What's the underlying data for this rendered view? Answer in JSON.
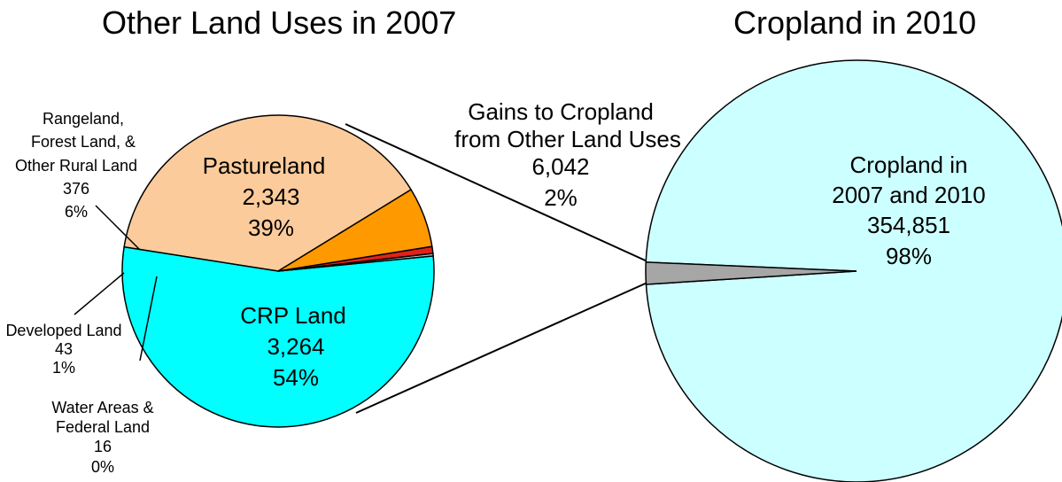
{
  "chart_data": [
    {
      "type": "pie",
      "title": "Other Land Uses in 2007",
      "slices": [
        {
          "name": "Pastureland",
          "value": 2343,
          "percent": "39%",
          "value_label": "2,343",
          "color": "#FCCB9B"
        },
        {
          "name": "CRP Land",
          "value": 3264,
          "percent": "54%",
          "value_label": "3,264",
          "color": "#00FFFF"
        },
        {
          "name": "Water Areas & Federal Land",
          "value": 16,
          "percent": "0%",
          "value_label": "16",
          "color": "#C0C0C0"
        },
        {
          "name": "Developed Land",
          "value": 43,
          "percent": "1%",
          "value_label": "43",
          "color": "#E0221A"
        },
        {
          "name": "Rangeland, Forest Land, & Other Rural Land",
          "value": 376,
          "percent": "6%",
          "value_label": "376",
          "color": "#FF9900"
        }
      ],
      "label_lines": {
        "rangeland": [
          "Rangeland,",
          "Forest Land, &",
          "Other Rural Land",
          "376",
          "6%"
        ],
        "developed": [
          "Developed Land",
          "43",
          "1%"
        ],
        "water": [
          "Water Areas &",
          "Federal Land",
          "16",
          "0%"
        ],
        "pasture": [
          "Pastureland",
          "2,343",
          "39%"
        ],
        "crp": [
          "CRP Land",
          "3,264",
          "54%"
        ]
      }
    },
    {
      "type": "pie",
      "title": "Cropland in 2010",
      "slices": [
        {
          "name": "Cropland in 2007 and 2010",
          "value": 354851,
          "percent": "98%",
          "value_label": "354,851",
          "color": "#CCFFFF"
        },
        {
          "name": "Gains to Cropland from Other Land Uses",
          "value": 6042,
          "percent": "2%",
          "value_label": "6,042",
          "color": "#A6A6A6"
        }
      ],
      "label_lines": {
        "cropland": [
          "Cropland in",
          "2007 and 2010",
          "354,851",
          "98%"
        ],
        "gains": [
          "Gains to Cropland",
          "from Other Land Uses",
          "6,042",
          "2%"
        ]
      }
    }
  ]
}
